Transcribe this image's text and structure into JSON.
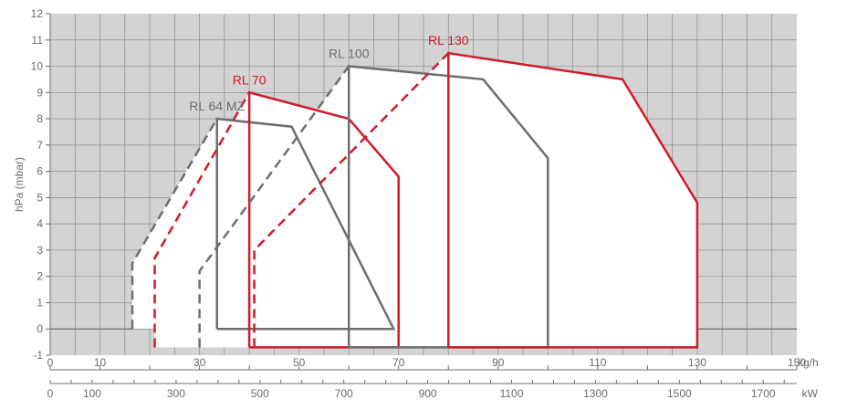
{
  "chart_data": {
    "type": "line",
    "title": "",
    "ylabel": "hPa (mbar)",
    "ylim": [
      -1,
      12
    ],
    "yticks": [
      "-1",
      "0",
      "1",
      "2",
      "3",
      "4",
      "5",
      "6",
      "7",
      "8",
      "9",
      "10",
      "11",
      "12"
    ],
    "x_primary": {
      "unit": "kg/h",
      "range": [
        0,
        150
      ],
      "ticks": [
        "0",
        "10",
        "30",
        "50",
        "70",
        "90",
        "110",
        "130",
        "150"
      ]
    },
    "x_secondary": {
      "unit": "kW",
      "range": [
        0,
        1780
      ],
      "ticks": [
        "0",
        "100",
        "300",
        "500",
        "700",
        "900",
        "1100",
        "1300",
        "1500",
        "1700"
      ]
    },
    "grid": true,
    "background": "#d3d3d3",
    "series": [
      {
        "name": "RL 64 MZ",
        "color": "#6d6e71",
        "outline": [
          [
            33.5,
            0.0
          ],
          [
            33.5,
            8.0
          ],
          [
            48.5,
            7.7
          ],
          [
            69.0,
            0.0
          ],
          [
            33.5,
            0.0
          ]
        ],
        "dashed": [
          [
            16.5,
            0.0
          ],
          [
            16.5,
            2.5
          ],
          [
            33.5,
            8.0
          ]
        ]
      },
      {
        "name": "RL 70",
        "color": "#d11a2a",
        "outline": [
          [
            40.0,
            -0.7
          ],
          [
            40.0,
            9.0
          ],
          [
            60.0,
            8.0
          ],
          [
            70.0,
            5.8
          ],
          [
            70.0,
            -0.7
          ],
          [
            40.0,
            -0.7
          ]
        ],
        "dashed": [
          [
            21.0,
            -0.7
          ],
          [
            21.0,
            2.7
          ],
          [
            40.0,
            9.0
          ]
        ]
      },
      {
        "name": "RL 100",
        "color": "#6d6e71",
        "outline": [
          [
            60.0,
            -0.7
          ],
          [
            60.0,
            10.0
          ],
          [
            87.0,
            9.5
          ],
          [
            100.0,
            6.5
          ],
          [
            100.0,
            -0.7
          ],
          [
            60.0,
            -0.7
          ]
        ],
        "dashed": [
          [
            30.0,
            -0.7
          ],
          [
            30.0,
            2.2
          ],
          [
            60.0,
            10.0
          ]
        ]
      },
      {
        "name": "RL 130",
        "color": "#d11a2a",
        "outline": [
          [
            80.0,
            -0.7
          ],
          [
            80.0,
            10.5
          ],
          [
            115.0,
            9.5
          ],
          [
            130.0,
            4.8
          ],
          [
            130.0,
            -0.7
          ],
          [
            80.0,
            -0.7
          ]
        ],
        "dashed": [
          [
            41.0,
            -0.7
          ],
          [
            41.0,
            3.0
          ],
          [
            80.0,
            10.5
          ]
        ]
      }
    ]
  }
}
